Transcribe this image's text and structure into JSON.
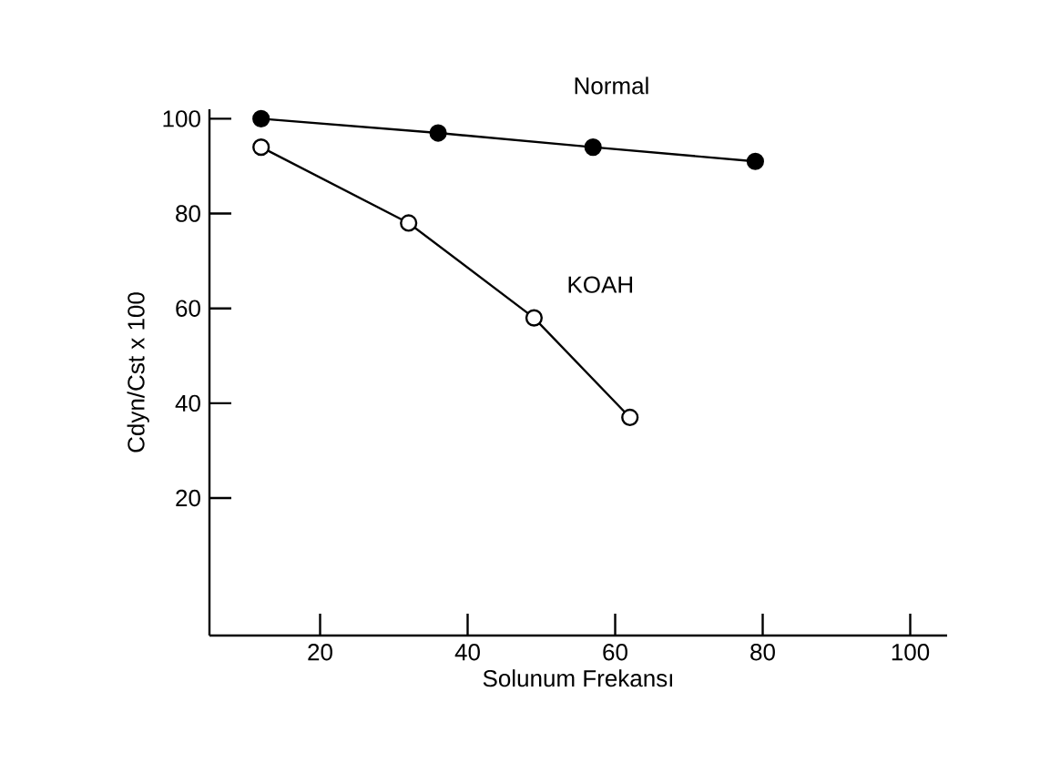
{
  "chart_data": {
    "type": "line",
    "xlabel": "Solunum Frekansı",
    "ylabel": "Cdyn/Cst x 100",
    "xlim": [
      5,
      105
    ],
    "ylim": [
      -9,
      102
    ],
    "xticks": [
      20,
      40,
      60,
      80,
      100
    ],
    "yticks": [
      20,
      40,
      60,
      80,
      100
    ],
    "marker": "circle",
    "series": [
      {
        "name": "Normal",
        "color": "#000000",
        "x": [
          12,
          36,
          57,
          79
        ],
        "values": [
          100,
          97,
          94,
          91
        ]
      },
      {
        "name": "KOAH",
        "color": "#000000",
        "x": [
          12,
          32,
          49,
          62
        ],
        "values": [
          94,
          78,
          58,
          37
        ]
      }
    ]
  }
}
